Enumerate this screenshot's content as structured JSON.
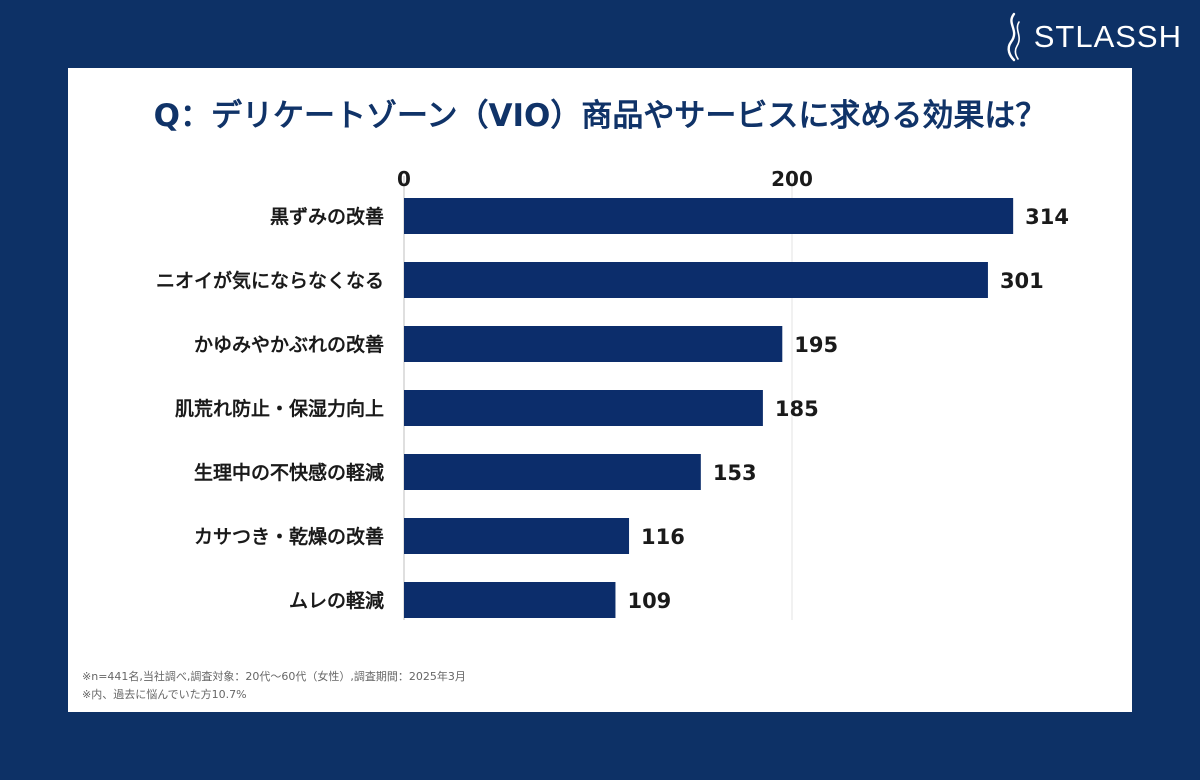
{
  "brand": {
    "name": "STLASSH",
    "logo_icon": "flame-logo-icon"
  },
  "page": {
    "background_color": "#0d3166",
    "bar_color": "#0c2d6b"
  },
  "title": "Q：デリケートゾーン（VIO）商品やサービスに求める効果は？",
  "chart_data": {
    "type": "bar",
    "orientation": "horizontal",
    "title": "Q：デリケートゾーン（VIO）商品やサービスに求める効果は？",
    "categories": [
      "黒ずみの改善",
      "ニオイが気にならなくなる",
      "かゆみやかぶれの改善",
      "肌荒れ防止・保湿力向上",
      "生理中の不快感の軽減",
      "カサつき・乾燥の改善",
      "ムレの軽減"
    ],
    "values": [
      314,
      301,
      195,
      185,
      153,
      116,
      109
    ],
    "x_ticks": [
      0,
      200
    ],
    "xlim": [
      0,
      400
    ],
    "xlabel": "",
    "ylabel": "",
    "grid": true,
    "axis_position": "top"
  },
  "notes": [
    "※n=441名,当社調べ,調査対象：20代〜60代（女性）,調査期間：2025年3月",
    "※内、過去に悩んでいた方10.7%"
  ]
}
